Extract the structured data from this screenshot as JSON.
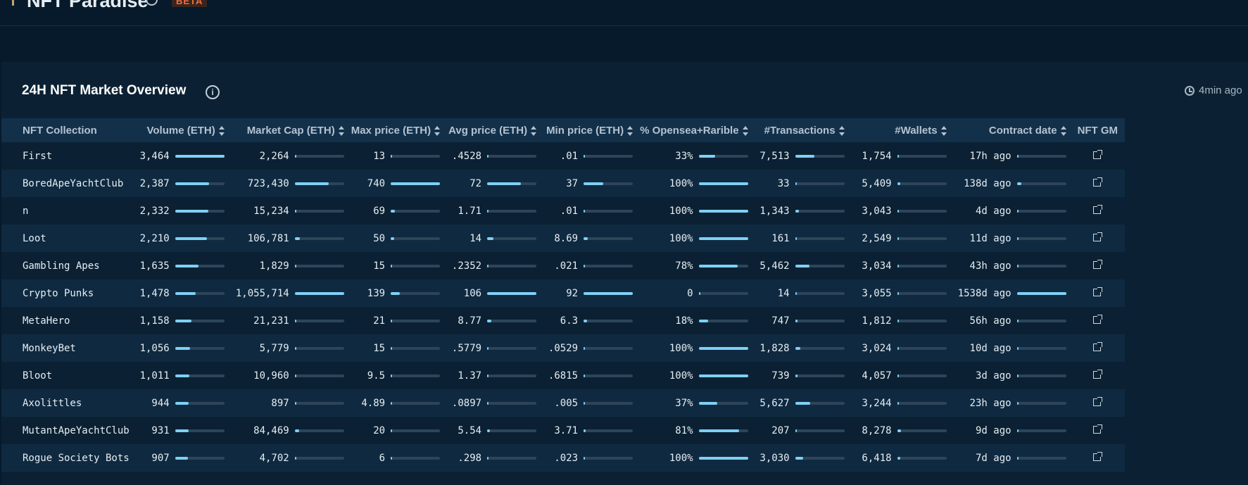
{
  "app": {
    "title": "NFT Paradise",
    "badge": "BETA"
  },
  "panel": {
    "title": "24H NFT Market Overview",
    "updated": "4min ago",
    "info_glyph": "i"
  },
  "columns": [
    {
      "key": "name",
      "label": "NFT Collection",
      "sortable": false
    },
    {
      "key": "volume",
      "label": "Volume (ETH)",
      "sortable": true
    },
    {
      "key": "mcap",
      "label": "Market Cap (ETH)",
      "sortable": true
    },
    {
      "key": "max",
      "label": "Max price (ETH)",
      "sortable": true
    },
    {
      "key": "avg",
      "label": "Avg price (ETH)",
      "sortable": true
    },
    {
      "key": "min",
      "label": "Min price (ETH)",
      "sortable": true
    },
    {
      "key": "pct",
      "label": "% Opensea+Rarible",
      "sortable": true
    },
    {
      "key": "tx",
      "label": "#Transactions",
      "sortable": true
    },
    {
      "key": "wallets",
      "label": "#Wallets",
      "sortable": true
    },
    {
      "key": "date",
      "label": "Contract date",
      "sortable": true
    },
    {
      "key": "gm",
      "label": "NFT GM",
      "sortable": false
    }
  ],
  "rows": [
    {
      "name": "First",
      "volume": "3,464",
      "volume_f": 1.0,
      "mcap": "2,264",
      "mcap_f": 0.0,
      "max": "13",
      "max_f": 0.0,
      "avg": ".4528",
      "avg_f": 0.0,
      "min": ".01",
      "min_f": 0.0,
      "pct": "33%",
      "pct_f": 0.33,
      "tx": "7,513",
      "tx_f": 0.39,
      "wallets": "1,754",
      "wallets_f": 0.0,
      "date": "17h ago",
      "date_f": 0.0
    },
    {
      "name": "BoredApeYachtClub",
      "volume": "2,387",
      "volume_f": 0.69,
      "mcap": "723,430",
      "mcap_f": 0.69,
      "max": "740",
      "max_f": 1.0,
      "avg": "72",
      "avg_f": 0.68,
      "min": "37",
      "min_f": 0.4,
      "pct": "100%",
      "pct_f": 1.0,
      "tx": "33",
      "tx_f": 0.0,
      "wallets": "5,409",
      "wallets_f": 0.05,
      "date": "138d ago",
      "date_f": 0.09
    },
    {
      "name": "n",
      "volume": "2,332",
      "volume_f": 0.67,
      "mcap": "15,234",
      "mcap_f": 0.01,
      "max": "69",
      "max_f": 0.09,
      "avg": "1.71",
      "avg_f": 0.02,
      "min": ".01",
      "min_f": 0.0,
      "pct": "100%",
      "pct_f": 1.0,
      "tx": "1,343",
      "tx_f": 0.07,
      "wallets": "3,043",
      "wallets_f": 0.0,
      "date": "4d ago",
      "date_f": 0.0
    },
    {
      "name": "Loot",
      "volume": "2,210",
      "volume_f": 0.64,
      "mcap": "106,781",
      "mcap_f": 0.1,
      "max": "50",
      "max_f": 0.07,
      "avg": "14",
      "avg_f": 0.13,
      "min": "8.69",
      "min_f": 0.09,
      "pct": "100%",
      "pct_f": 1.0,
      "tx": "161",
      "tx_f": 0.0,
      "wallets": "2,549",
      "wallets_f": 0.0,
      "date": "11d ago",
      "date_f": 0.0
    },
    {
      "name": "Gambling Apes",
      "volume": "1,635",
      "volume_f": 0.47,
      "mcap": "1,829",
      "mcap_f": 0.0,
      "max": "15",
      "max_f": 0.0,
      "avg": ".2352",
      "avg_f": 0.0,
      "min": ".021",
      "min_f": 0.0,
      "pct": "78%",
      "pct_f": 0.78,
      "tx": "5,462",
      "tx_f": 0.29,
      "wallets": "3,034",
      "wallets_f": 0.0,
      "date": "43h ago",
      "date_f": 0.0
    },
    {
      "name": "Crypto Punks",
      "volume": "1,478",
      "volume_f": 0.42,
      "mcap": "1,055,714",
      "mcap_f": 1.0,
      "max": "139",
      "max_f": 0.19,
      "avg": "106",
      "avg_f": 1.0,
      "min": "92",
      "min_f": 1.0,
      "pct": "0",
      "pct_f": 0.0,
      "tx": "14",
      "tx_f": 0.0,
      "wallets": "3,055",
      "wallets_f": 0.0,
      "date": "1538d ago",
      "date_f": 1.0
    },
    {
      "name": "MetaHero",
      "volume": "1,158",
      "volume_f": 0.33,
      "mcap": "21,231",
      "mcap_f": 0.02,
      "max": "21",
      "max_f": 0.03,
      "avg": "8.77",
      "avg_f": 0.08,
      "min": "6.3",
      "min_f": 0.07,
      "pct": "18%",
      "pct_f": 0.18,
      "tx": "747",
      "tx_f": 0.04,
      "wallets": "1,812",
      "wallets_f": 0.0,
      "date": "56h ago",
      "date_f": 0.0
    },
    {
      "name": "MonkeyBet",
      "volume": "1,056",
      "volume_f": 0.3,
      "mcap": "5,779",
      "mcap_f": 0.0,
      "max": "15",
      "max_f": 0.0,
      "avg": ".5779",
      "avg_f": 0.0,
      "min": ".0529",
      "min_f": 0.0,
      "pct": "100%",
      "pct_f": 1.0,
      "tx": "1,828",
      "tx_f": 0.1,
      "wallets": "3,024",
      "wallets_f": 0.0,
      "date": "10d ago",
      "date_f": 0.0
    },
    {
      "name": "Bloot",
      "volume": "1,011",
      "volume_f": 0.29,
      "mcap": "10,960",
      "mcap_f": 0.01,
      "max": "9.5",
      "max_f": 0.0,
      "avg": "1.37",
      "avg_f": 0.01,
      "min": ".6815",
      "min_f": 0.01,
      "pct": "100%",
      "pct_f": 1.0,
      "tx": "739",
      "tx_f": 0.04,
      "wallets": "4,057",
      "wallets_f": 0.03,
      "date": "3d ago",
      "date_f": 0.0
    },
    {
      "name": "Axolittles",
      "volume": "944",
      "volume_f": 0.27,
      "mcap": "897",
      "mcap_f": 0.0,
      "max": "4.89",
      "max_f": 0.0,
      "avg": ".0897",
      "avg_f": 0.0,
      "min": ".005",
      "min_f": 0.0,
      "pct": "37%",
      "pct_f": 0.37,
      "tx": "5,627",
      "tx_f": 0.3,
      "wallets": "3,244",
      "wallets_f": 0.0,
      "date": "23h ago",
      "date_f": 0.0
    },
    {
      "name": "MutantApeYachtClub",
      "volume": "931",
      "volume_f": 0.27,
      "mcap": "84,469",
      "mcap_f": 0.08,
      "max": "20",
      "max_f": 0.03,
      "avg": "5.54",
      "avg_f": 0.05,
      "min": "3.71",
      "min_f": 0.04,
      "pct": "81%",
      "pct_f": 0.81,
      "tx": "207",
      "tx_f": 0.01,
      "wallets": "8,278",
      "wallets_f": 0.07,
      "date": "9d ago",
      "date_f": 0.0
    },
    {
      "name": "Rogue Society Bots",
      "volume": "907",
      "volume_f": 0.26,
      "mcap": "4,702",
      "mcap_f": 0.0,
      "max": "6",
      "max_f": 0.0,
      "avg": ".298",
      "avg_f": 0.0,
      "min": ".023",
      "min_f": 0.0,
      "pct": "100%",
      "pct_f": 1.0,
      "tx": "3,030",
      "tx_f": 0.16,
      "wallets": "6,418",
      "wallets_f": 0.05,
      "date": "7d ago",
      "date_f": 0.0
    }
  ]
}
